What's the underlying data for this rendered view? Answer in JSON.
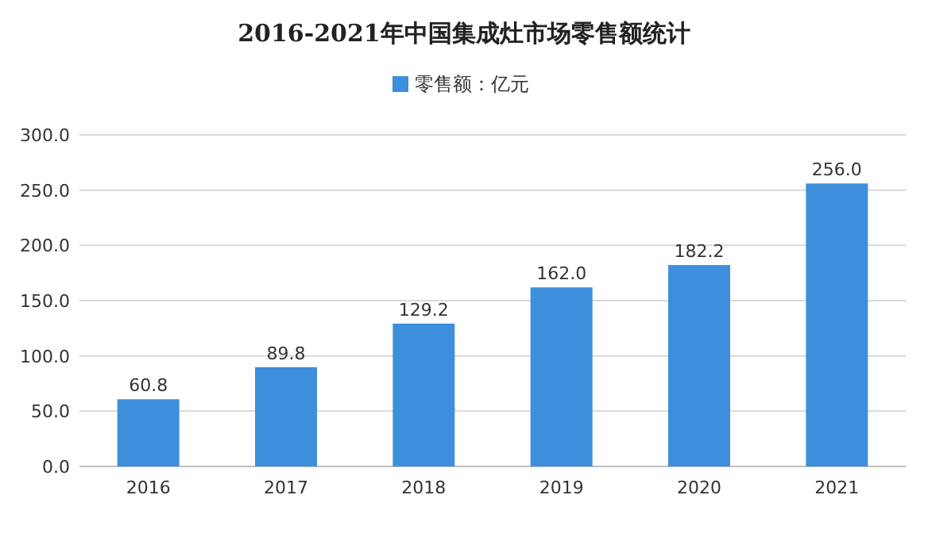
{
  "chart_data": {
    "type": "bar",
    "title": "2016-2021年中国集成灶市场零售额统计",
    "categories": [
      "2016",
      "2017",
      "2018",
      "2019",
      "2020",
      "2021"
    ],
    "series": [
      {
        "name": "零售额：亿元",
        "color": "#3d8fdb",
        "values": [
          60.8,
          89.8,
          129.2,
          162.0,
          182.2,
          256.0
        ],
        "value_labels": [
          "60.8",
          "89.8",
          "129.2",
          "162.0",
          "182.2",
          "256.0"
        ]
      }
    ],
    "ylim": [
      0,
      300
    ],
    "yticks": [
      {
        "value": 0,
        "label": "0.0"
      },
      {
        "value": 50,
        "label": "50.0"
      },
      {
        "value": 100,
        "label": "100.0"
      },
      {
        "value": 150,
        "label": "150.0"
      },
      {
        "value": 200,
        "label": "200.0"
      },
      {
        "value": 250,
        "label": "250.0"
      },
      {
        "value": 300,
        "label": "300.0"
      }
    ],
    "grid": "y",
    "legend": "top"
  }
}
